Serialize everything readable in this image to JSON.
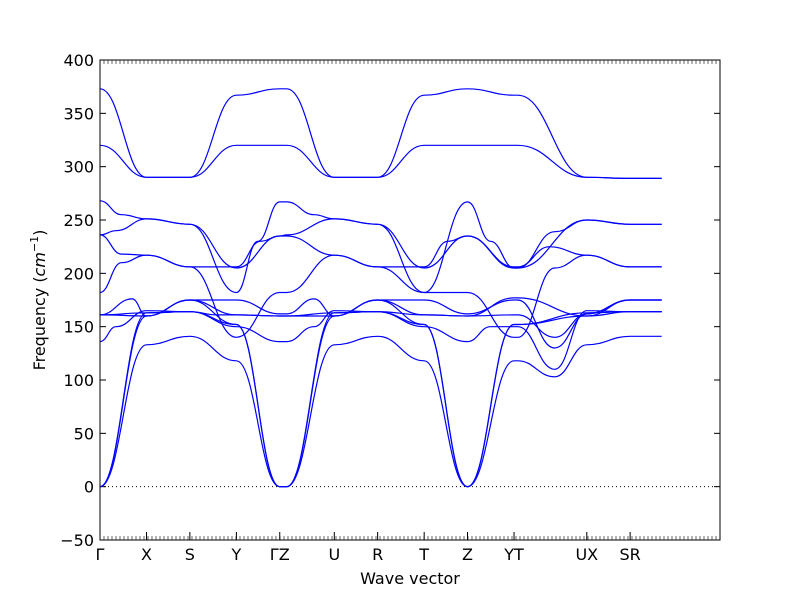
{
  "chart_data": {
    "type": "line",
    "xlabel": "Wave vector",
    "ylabel_prefix": "Frequency (",
    "ylabel_unit": "cm",
    "ylabel_exp": "−1",
    "ylabel_suffix": ")",
    "ylim": [
      -50,
      400
    ],
    "yticks": [
      "−50",
      "0",
      "50",
      "100",
      "150",
      "200",
      "250",
      "300",
      "350",
      "400"
    ],
    "ytick_values": [
      -50,
      0,
      50,
      100,
      150,
      200,
      250,
      300,
      350,
      400
    ],
    "xlim": [
      0,
      11.59
    ],
    "xticks": [
      {
        "label": "Γ",
        "x": 0
      },
      {
        "label": "X",
        "x": 0.87
      },
      {
        "label": "S",
        "x": 1.68
      },
      {
        "label": "Y",
        "x": 2.55
      },
      {
        "label": "ΓZ",
        "x": 3.36
      },
      {
        "label": "U",
        "x": 4.38
      },
      {
        "label": "R",
        "x": 5.19
      },
      {
        "label": "T",
        "x": 6.06
      },
      {
        "label": "Z",
        "x": 6.87
      },
      {
        "label": "YT",
        "x": 7.74
      },
      {
        "label": "UX",
        "x": 9.1
      },
      {
        "label": "SR",
        "x": 9.91
      }
    ],
    "zero_line": {
      "y": 0,
      "style": "dotted"
    },
    "line_color": "#0000ff",
    "series": [
      {
        "x": [
          0,
          0.87,
          1.68,
          2.55,
          3.36,
          3.49,
          4.38,
          5.19,
          6.06,
          6.87,
          7.74,
          7.81,
          9.1,
          9.91,
          10.5
        ],
        "y": [
          373,
          290,
          290,
          367,
          373,
          373,
          290,
          290,
          367,
          373,
          367,
          367,
          290,
          289,
          289
        ]
      },
      {
        "x": [
          0,
          0.87,
          1.68,
          2.55,
          3.36,
          3.49,
          4.38,
          5.19,
          6.06,
          6.87,
          7.74,
          7.81,
          9.1,
          9.91,
          10.5
        ],
        "y": [
          320,
          290,
          290,
          320,
          320,
          320,
          290,
          290,
          320,
          320,
          320,
          320,
          290,
          289,
          289
        ]
      },
      {
        "x": [
          0,
          0.4,
          0.87,
          1.68,
          2.55,
          2.95,
          3.36,
          3.49,
          4.0,
          4.38,
          5.19,
          6.06,
          6.87,
          7.3,
          7.74,
          7.81,
          8.5,
          9.1,
          9.91,
          10.5
        ],
        "y": [
          268,
          255,
          251,
          246,
          182,
          230,
          267,
          267,
          255,
          251,
          246,
          182,
          267,
          230,
          205,
          205,
          239,
          250,
          246,
          246
        ]
      },
      {
        "x": [
          0,
          0.3,
          0.87,
          1.68,
          2.55,
          3.36,
          3.49,
          4.38,
          5.19,
          6.06,
          6.87,
          7.74,
          7.81,
          9.1,
          9.91,
          10.5
        ],
        "y": [
          236,
          240,
          251,
          246,
          205,
          235,
          236,
          251,
          246,
          205,
          235,
          205,
          205,
          250,
          246,
          246
        ]
      },
      {
        "x": [
          0,
          0.4,
          0.87,
          1.68,
          2.55,
          3.0,
          3.36,
          3.49,
          4.38,
          5.19,
          6.06,
          6.5,
          6.87,
          7.74,
          7.81,
          8.4,
          9.1,
          9.91,
          10.5
        ],
        "y": [
          236,
          218,
          217,
          206,
          206,
          230,
          235,
          235,
          217,
          206,
          206,
          230,
          235,
          206,
          206,
          225,
          217,
          206,
          206
        ]
      },
      {
        "x": [
          0,
          0.4,
          0.87,
          1.68,
          2.55,
          3.36,
          3.49,
          4.38,
          5.19,
          6.06,
          6.87,
          7.74,
          7.81,
          8.5,
          9.1,
          9.91,
          10.5
        ],
        "y": [
          182,
          210,
          217,
          206,
          140,
          182,
          182,
          217,
          206,
          182,
          182,
          140,
          140,
          205,
          217,
          206,
          206
        ]
      },
      {
        "x": [
          0,
          0.6,
          0.87,
          1.68,
          2.55,
          3.36,
          3.49,
          4.0,
          4.38,
          5.19,
          6.06,
          6.87,
          7.74,
          7.81,
          8.5,
          9.1,
          9.91,
          10.5
        ],
        "y": [
          161,
          176,
          160,
          175,
          175,
          162,
          162,
          176,
          160,
          175,
          175,
          162,
          175,
          175,
          130,
          162,
          175,
          175
        ]
      },
      {
        "x": [
          0,
          0.87,
          1.68,
          2.2,
          2.55,
          3.36,
          3.49,
          4.38,
          5.19,
          6.06,
          6.87,
          7.74,
          7.81,
          9.1,
          9.91,
          10.5
        ],
        "y": [
          161,
          163,
          164,
          161,
          161,
          160,
          160,
          163,
          164,
          161,
          160,
          177,
          177,
          160,
          164,
          164
        ]
      },
      {
        "x": [
          0,
          0.87,
          1.68,
          2.55,
          3.36,
          3.49,
          4.38,
          5.19,
          6.06,
          6.87,
          7.74,
          7.81,
          8.5,
          9.1,
          9.91,
          10.5
        ],
        "y": [
          161,
          160,
          175,
          161,
          160,
          160,
          160,
          175,
          161,
          160,
          161,
          161,
          140,
          162,
          175,
          175
        ]
      },
      {
        "x": [
          0,
          0.3,
          0.87,
          1.68,
          2.55,
          3.36,
          3.49,
          4.0,
          4.38,
          5.19,
          6.06,
          6.87,
          7.3,
          7.74,
          7.81,
          8.5,
          9.1,
          9.91,
          10.5
        ],
        "y": [
          136,
          150,
          165,
          164,
          150,
          136,
          136,
          150,
          165,
          164,
          150,
          136,
          150,
          150,
          150,
          110,
          165,
          164,
          164
        ]
      },
      {
        "x": [
          0,
          0.87,
          1.68,
          2.55,
          3.36,
          3.49,
          4.38,
          5.19,
          6.06,
          6.87,
          7.74,
          7.81,
          8.5,
          9.1,
          9.91,
          10.5
        ],
        "y": [
          0,
          133,
          141,
          118,
          0,
          0,
          133,
          141,
          118,
          0,
          118,
          118,
          103,
          133,
          141,
          141
        ]
      },
      {
        "x": [
          0,
          0.87,
          1.68,
          2.55,
          3.36,
          3.49,
          4.38,
          5.19,
          6.06,
          6.87,
          7.74,
          7.81,
          9.1,
          9.91,
          10.5
        ],
        "y": [
          0,
          160,
          175,
          152,
          0,
          0,
          160,
          175,
          152,
          0,
          152,
          152,
          160,
          175,
          175
        ]
      },
      {
        "x": [
          0,
          0.87,
          1.68,
          2.55,
          3.36,
          3.49,
          4.38,
          5.19,
          6.06,
          6.87,
          7.74,
          7.81,
          9.1,
          9.91,
          10.5
        ],
        "y": [
          0,
          163,
          164,
          152,
          0,
          0,
          163,
          164,
          152,
          0,
          152,
          152,
          163,
          164,
          164
        ]
      }
    ]
  }
}
